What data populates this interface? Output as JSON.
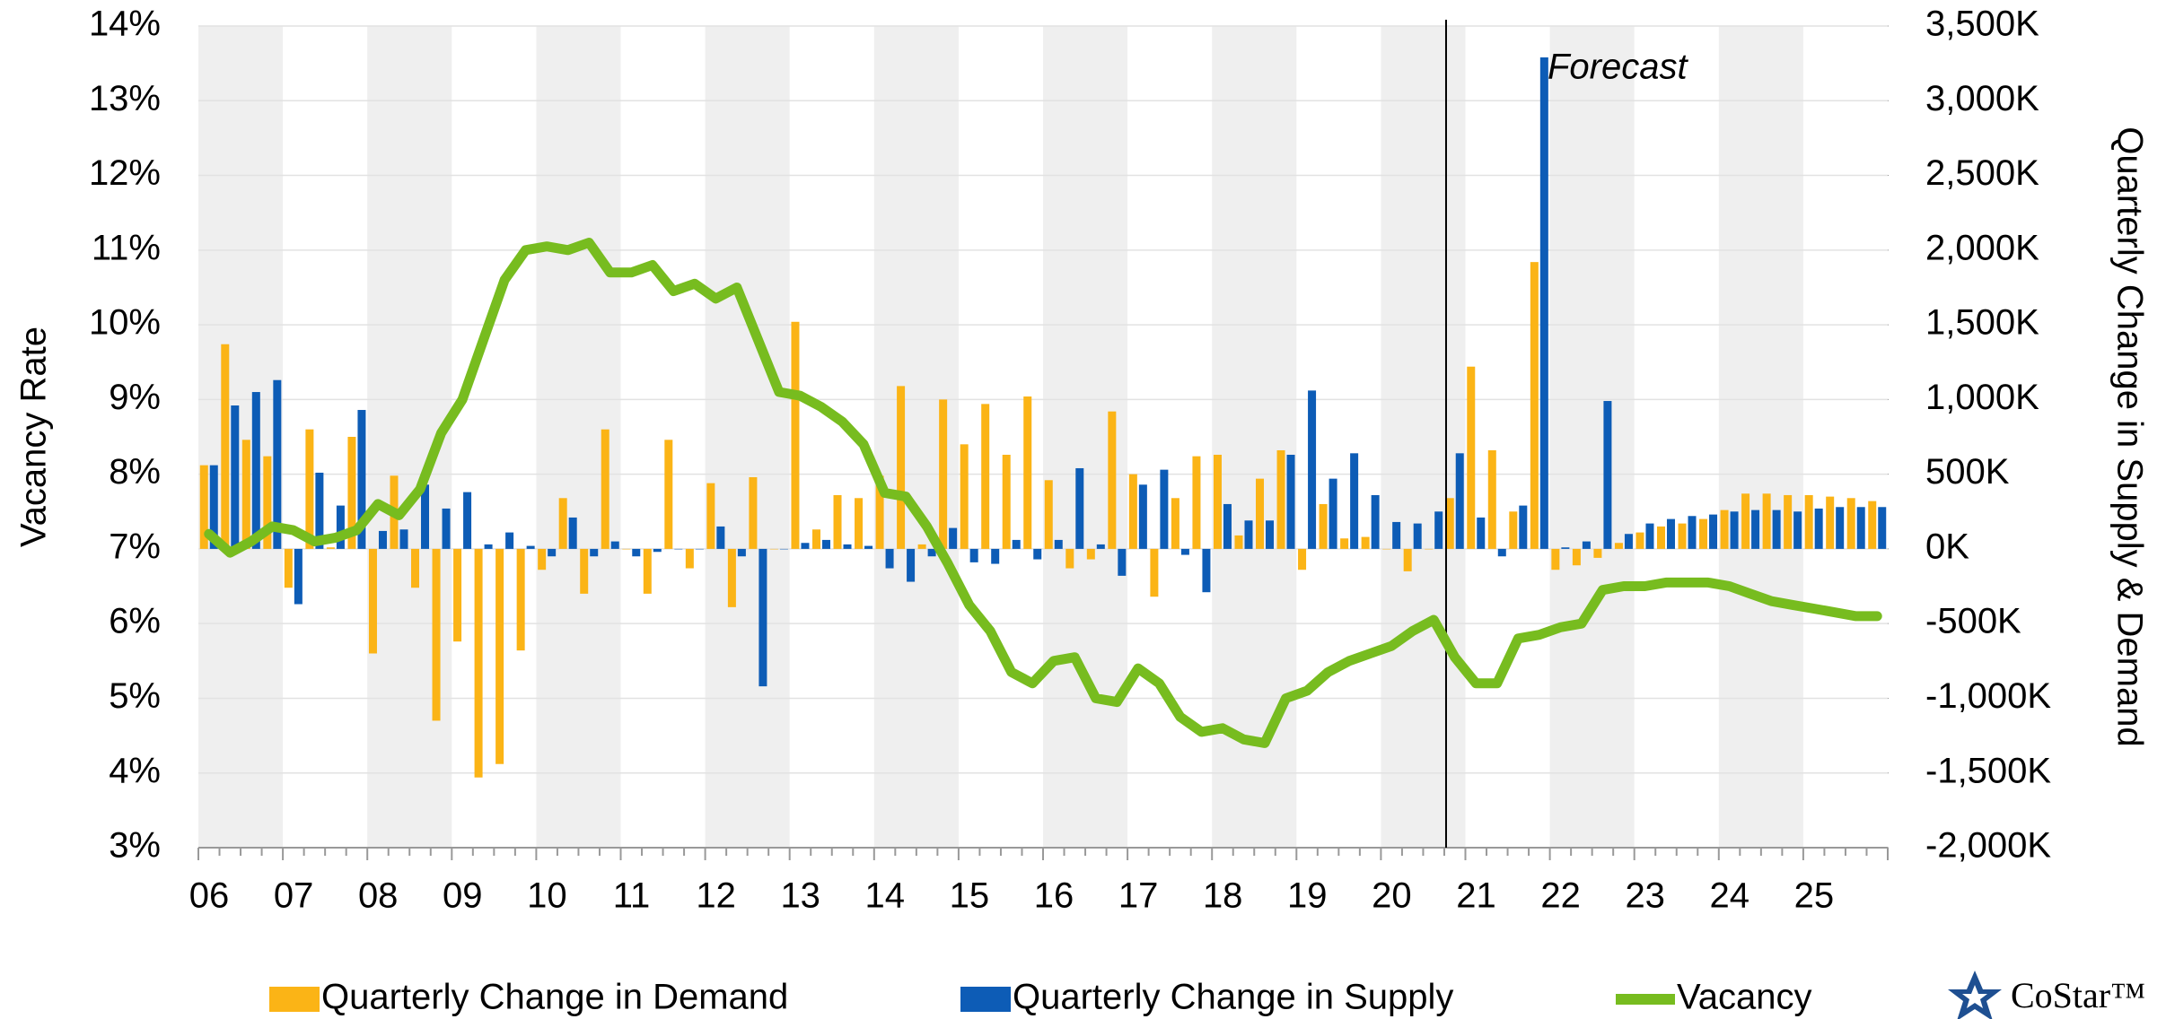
{
  "chart_data": {
    "type": "bar",
    "y_label": "Vacancy Rate",
    "y2_label": "Quarterly Change in Supply & Demand",
    "annotation": "Forecast",
    "logo": "CoStar™",
    "categories": [
      "06",
      null,
      null,
      null,
      "07",
      null,
      null,
      null,
      "08",
      null,
      null,
      null,
      "09",
      null,
      null,
      null,
      "10",
      null,
      null,
      null,
      "11",
      null,
      null,
      null,
      "12",
      null,
      null,
      null,
      "13",
      null,
      null,
      null,
      "14",
      null,
      null,
      null,
      "15",
      null,
      null,
      null,
      "16",
      null,
      null,
      null,
      "17",
      null,
      null,
      null,
      "18",
      null,
      null,
      null,
      "19",
      null,
      null,
      null,
      "20",
      null,
      null,
      null,
      "21",
      null,
      null,
      null,
      "22",
      null,
      null,
      null,
      "23",
      null,
      null,
      null,
      "24",
      null,
      null,
      null,
      "25",
      null,
      null,
      null
    ],
    "ylim": [
      3,
      14
    ],
    "yticks": [
      {
        "value": 3,
        "label": "3%"
      },
      {
        "value": 4,
        "label": "4%"
      },
      {
        "value": 5,
        "label": "5%"
      },
      {
        "value": 6,
        "label": "6%"
      },
      {
        "value": 7,
        "label": "7%"
      },
      {
        "value": 8,
        "label": "8%"
      },
      {
        "value": 9,
        "label": "9%"
      },
      {
        "value": 10,
        "label": "10%"
      },
      {
        "value": 11,
        "label": "11%"
      },
      {
        "value": 12,
        "label": "12%"
      },
      {
        "value": 13,
        "label": "13%"
      },
      {
        "value": 14,
        "label": "14%"
      }
    ],
    "y2lim": [
      -2000,
      3500
    ],
    "y2ticks": [
      {
        "value": -2000,
        "label": "-2,000K"
      },
      {
        "value": -1500,
        "label": "-1,500K"
      },
      {
        "value": -1000,
        "label": "-1,000K"
      },
      {
        "value": -500,
        "label": "-500K"
      },
      {
        "value": 0,
        "label": "0K"
      },
      {
        "value": 500,
        "label": "500K"
      },
      {
        "value": 1000,
        "label": "1,000K"
      },
      {
        "value": 1500,
        "label": "1,500K"
      },
      {
        "value": 2000,
        "label": "2,000K"
      },
      {
        "value": 2500,
        "label": "2,500K"
      },
      {
        "value": 3000,
        "label": "3,000K"
      },
      {
        "value": 3500,
        "label": "3,500K"
      }
    ],
    "grid": true,
    "legend": "bottom",
    "series": [
      {
        "name": "Quarterly Change in Demand",
        "color": "#fbb416",
        "axis": "y2",
        "values": [
          560,
          1370,
          730,
          620,
          -260,
          800,
          10,
          750,
          -700,
          490,
          -260,
          -1150,
          -620,
          -1530,
          -1440,
          -680,
          -140,
          340,
          -300,
          800,
          0,
          -300,
          730,
          -130,
          440,
          -390,
          480,
          0,
          1520,
          130,
          360,
          340,
          490,
          1090,
          30,
          1000,
          700,
          970,
          630,
          1020,
          460,
          -130,
          -70,
          920,
          500,
          -320,
          340,
          620,
          630,
          90,
          470,
          660,
          -140,
          300,
          70,
          80,
          0,
          -150,
          0,
          340,
          1220,
          660,
          250,
          1920,
          -140,
          -110,
          -60,
          40,
          110,
          150,
          170,
          200,
          260,
          370,
          370,
          360,
          360,
          350,
          340,
          320
        ]
      },
      {
        "name": "Quarterly Change in Supply",
        "color": "#0d5cb6",
        "axis": "y2",
        "values": [
          560,
          960,
          1050,
          1130,
          -370,
          510,
          290,
          930,
          120,
          130,
          430,
          270,
          380,
          30,
          110,
          20,
          -50,
          210,
          -50,
          50,
          -50,
          -20,
          0,
          0,
          150,
          -50,
          -920,
          0,
          40,
          60,
          30,
          20,
          -130,
          -220,
          -50,
          140,
          -90,
          -100,
          60,
          -70,
          60,
          540,
          30,
          -180,
          430,
          530,
          -40,
          -290,
          300,
          190,
          190,
          630,
          1060,
          470,
          640,
          360,
          180,
          170,
          250,
          640,
          210,
          -50,
          290,
          3290,
          10,
          50,
          990,
          100,
          170,
          200,
          220,
          230,
          250,
          260,
          260,
          250,
          270,
          280,
          280,
          280
        ]
      },
      {
        "name": "Vacancy",
        "color": "#77bc1f",
        "type": "line",
        "values": [
          7.2,
          6.95,
          7.1,
          7.3,
          7.25,
          7.1,
          7.15,
          7.25,
          7.6,
          7.45,
          7.8,
          8.55,
          9.0,
          9.8,
          10.6,
          11.0,
          11.05,
          11.0,
          11.1,
          10.7,
          10.7,
          10.8,
          10.45,
          10.55,
          10.35,
          10.5,
          9.8,
          9.1,
          9.05,
          8.9,
          8.7,
          8.4,
          7.75,
          7.7,
          7.3,
          6.8,
          6.25,
          5.9,
          5.35,
          5.2,
          5.5,
          5.55,
          5.0,
          4.95,
          5.4,
          5.2,
          4.75,
          4.55,
          4.6,
          4.45,
          4.4,
          5.0,
          5.1,
          5.35,
          5.5,
          5.6,
          5.7,
          5.9,
          6.05,
          5.55,
          5.2,
          5.2,
          5.8,
          5.85,
          5.95,
          6.0,
          6.45,
          6.5,
          6.5,
          6.55,
          6.55,
          6.55,
          6.5,
          6.4,
          6.3,
          6.25,
          6.2,
          6.15,
          6.1,
          6.1
        ]
      }
    ]
  }
}
